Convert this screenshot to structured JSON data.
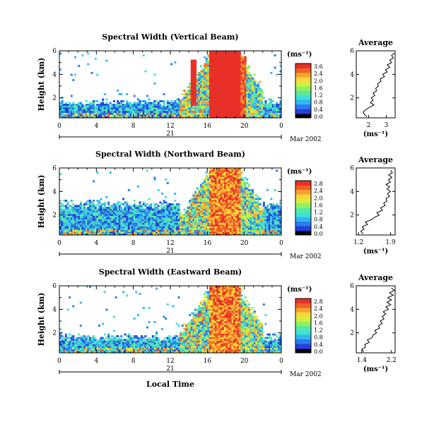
{
  "colorbar_colors": [
    "#1a1a8c",
    "#2440d8",
    "#2b7cf0",
    "#35b5f0",
    "#3ee0d8",
    "#58e8a0",
    "#90f060",
    "#d0f040",
    "#f8d838",
    "#f8a030",
    "#f06028",
    "#e83028"
  ],
  "chart_data": [
    {
      "type": "heatmap",
      "title": "Spectral Width (Vertical Beam)",
      "xlabel": "",
      "ylabel": "Height (km)",
      "x_ticks": [
        "0",
        "4",
        "8",
        "12",
        "16",
        "20",
        "0"
      ],
      "y_ticks": [
        "2",
        "4",
        "6"
      ],
      "xlim": [
        0,
        24
      ],
      "ylim": [
        0.3,
        6
      ],
      "date_day": "21",
      "date_label": "Mar 2002",
      "colorbar_unit": "(ms⁻¹)",
      "colorbar_ticks": [
        "3.6",
        "2.4",
        "2.0",
        "1.6",
        "1.2",
        "0.8",
        "0.4",
        "0.0"
      ],
      "colorbar_range": [
        0,
        3.6
      ],
      "profile": {
        "title": "Average",
        "xlabel": "(ms⁻¹)",
        "x_ticks": [
          "2",
          "3"
        ],
        "y_ticks": [
          "2",
          "4",
          "6"
        ],
        "xlim": [
          1.3,
          3.5
        ],
        "points": [
          [
            1.9,
            0.4
          ],
          [
            1.75,
            0.6
          ],
          [
            1.7,
            0.8
          ],
          [
            1.85,
            1.0
          ],
          [
            2.05,
            1.2
          ],
          [
            2.3,
            1.4
          ],
          [
            2.1,
            1.6
          ],
          [
            2.25,
            1.8
          ],
          [
            2.15,
            2.0
          ],
          [
            2.35,
            2.2
          ],
          [
            2.25,
            2.4
          ],
          [
            2.45,
            2.6
          ],
          [
            2.4,
            2.8
          ],
          [
            2.55,
            3.0
          ],
          [
            2.5,
            3.2
          ],
          [
            2.7,
            3.4
          ],
          [
            2.65,
            3.6
          ],
          [
            2.9,
            3.8
          ],
          [
            2.8,
            4.0
          ],
          [
            3.05,
            4.2
          ],
          [
            2.95,
            4.4
          ],
          [
            3.2,
            4.6
          ],
          [
            3.05,
            4.8
          ],
          [
            3.3,
            5.0
          ],
          [
            3.2,
            5.2
          ],
          [
            3.4,
            5.4
          ],
          [
            3.3,
            5.6
          ],
          [
            3.45,
            5.8
          ]
        ]
      }
    },
    {
      "type": "heatmap",
      "title": "Spectral Width (Northward Beam)",
      "xlabel": "",
      "ylabel": "Height (km)",
      "x_ticks": [
        "0",
        "4",
        "8",
        "12",
        "16",
        "20",
        "0"
      ],
      "y_ticks": [
        "2",
        "4",
        "6"
      ],
      "xlim": [
        0,
        24
      ],
      "ylim": [
        0.3,
        6
      ],
      "date_day": "21",
      "date_label": "Mar 2002",
      "colorbar_unit": "(ms⁻¹)",
      "colorbar_ticks": [
        "2.8",
        "2.4",
        "2.0",
        "1.6",
        "1.2",
        "0.8",
        "0.4",
        "0.0"
      ],
      "colorbar_range": [
        0,
        2.8
      ],
      "profile": {
        "title": "Average",
        "xlabel": "(ms⁻¹)",
        "x_ticks": [
          "1.2",
          "1.9"
        ],
        "y_ticks": [
          "2",
          "4",
          "6"
        ],
        "xlim": [
          1.15,
          2.0
        ],
        "points": [
          [
            1.3,
            0.4
          ],
          [
            1.25,
            0.6
          ],
          [
            1.32,
            0.8
          ],
          [
            1.28,
            1.0
          ],
          [
            1.4,
            1.2
          ],
          [
            1.35,
            1.4
          ],
          [
            1.48,
            1.6
          ],
          [
            1.55,
            1.8
          ],
          [
            1.65,
            2.0
          ],
          [
            1.6,
            2.2
          ],
          [
            1.72,
            2.4
          ],
          [
            1.68,
            2.6
          ],
          [
            1.78,
            2.8
          ],
          [
            1.75,
            3.0
          ],
          [
            1.82,
            3.2
          ],
          [
            1.8,
            3.4
          ],
          [
            1.88,
            3.6
          ],
          [
            1.83,
            3.8
          ],
          [
            1.9,
            4.0
          ],
          [
            1.82,
            4.2
          ],
          [
            1.88,
            4.4
          ],
          [
            1.8,
            4.6
          ],
          [
            1.9,
            4.8
          ],
          [
            1.85,
            5.0
          ],
          [
            1.93,
            5.2
          ],
          [
            1.86,
            5.4
          ],
          [
            1.94,
            5.6
          ],
          [
            1.9,
            5.8
          ]
        ]
      }
    },
    {
      "type": "heatmap",
      "title": "Spectral Width (Eastward Beam)",
      "xlabel": "Local Time",
      "ylabel": "Height (km)",
      "x_ticks": [
        "0",
        "4",
        "8",
        "12",
        "16",
        "20",
        "0"
      ],
      "y_ticks": [
        "2",
        "4",
        "6"
      ],
      "xlim": [
        0,
        24
      ],
      "ylim": [
        0.3,
        6
      ],
      "date_day": "21",
      "date_label": "Mar 2002",
      "colorbar_unit": "(ms⁻¹)",
      "colorbar_ticks": [
        "2.8",
        "2.4",
        "2.0",
        "1.6",
        "1.2",
        "0.8",
        "0.4",
        "0.0"
      ],
      "colorbar_range": [
        0,
        2.8
      ],
      "profile": {
        "title": "Average",
        "xlabel": "(ms⁻¹)",
        "x_ticks": [
          "1.4",
          "2.2"
        ],
        "y_ticks": [
          "2",
          "4",
          "6"
        ],
        "xlim": [
          1.25,
          2.3
        ],
        "points": [
          [
            1.45,
            0.4
          ],
          [
            1.4,
            0.6
          ],
          [
            1.5,
            0.8
          ],
          [
            1.48,
            1.0
          ],
          [
            1.6,
            1.2
          ],
          [
            1.55,
            1.4
          ],
          [
            1.68,
            1.6
          ],
          [
            1.7,
            1.8
          ],
          [
            1.8,
            2.0
          ],
          [
            1.75,
            2.2
          ],
          [
            1.88,
            2.4
          ],
          [
            1.85,
            2.6
          ],
          [
            1.95,
            2.8
          ],
          [
            1.9,
            3.0
          ],
          [
            2.0,
            3.2
          ],
          [
            1.95,
            3.4
          ],
          [
            2.05,
            3.6
          ],
          [
            1.98,
            3.8
          ],
          [
            2.12,
            4.0
          ],
          [
            2.05,
            4.2
          ],
          [
            2.18,
            4.4
          ],
          [
            2.08,
            4.6
          ],
          [
            2.2,
            4.8
          ],
          [
            2.1,
            5.0
          ],
          [
            2.25,
            5.2
          ],
          [
            2.15,
            5.4
          ],
          [
            2.28,
            5.6
          ],
          [
            2.2,
            5.8
          ]
        ]
      }
    }
  ]
}
